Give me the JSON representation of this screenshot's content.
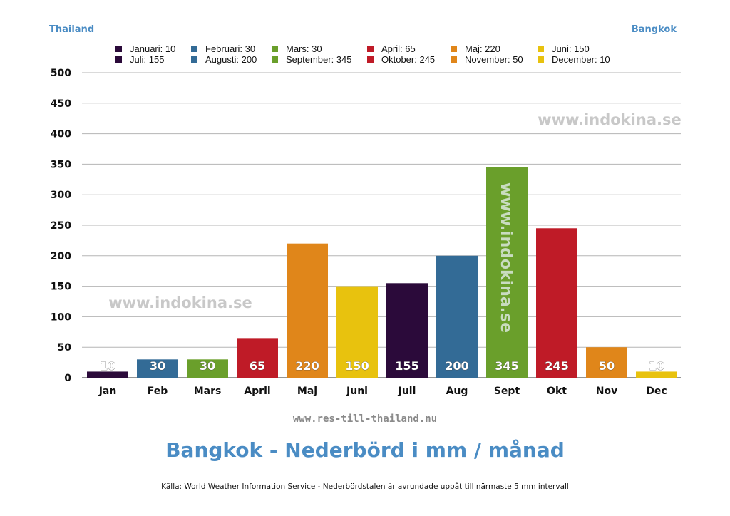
{
  "header": {
    "left": "Thailand",
    "right": "Bangkok"
  },
  "legend": [
    {
      "label": "Januari: 10",
      "color": "#2b0a3a"
    },
    {
      "label": "Februari: 30",
      "color": "#336b96"
    },
    {
      "label": "Mars: 30",
      "color": "#6a9f2b"
    },
    {
      "label": "April: 65",
      "color": "#bf1b27"
    },
    {
      "label": "Maj: 220",
      "color": "#e0861a"
    },
    {
      "label": "Juni: 150",
      "color": "#e8c20e"
    },
    {
      "label": "Juli: 155",
      "color": "#2b0a3a"
    },
    {
      "label": "Augusti: 200",
      "color": "#336b96"
    },
    {
      "label": "September: 345",
      "color": "#6a9f2b"
    },
    {
      "label": "Oktober: 245",
      "color": "#bf1b27"
    },
    {
      "label": "November: 50",
      "color": "#e0861a"
    },
    {
      "label": "December: 10",
      "color": "#e8c20e"
    }
  ],
  "watermarks": [
    "www.indokina.se",
    "www.indokina.se",
    "www.indokina.se"
  ],
  "chart_data": {
    "type": "bar",
    "categories": [
      "Jan",
      "Feb",
      "Mars",
      "April",
      "Maj",
      "Juni",
      "Juli",
      "Aug",
      "Sept",
      "Okt",
      "Nov",
      "Dec"
    ],
    "values": [
      10,
      30,
      30,
      65,
      220,
      150,
      155,
      200,
      345,
      245,
      50,
      10
    ],
    "data_labels": [
      "10",
      "30",
      "30",
      "65",
      "220",
      "150",
      "155",
      "200",
      "345",
      "245",
      "50",
      "10"
    ],
    "colors": [
      "#2b0a3a",
      "#336b96",
      "#6a9f2b",
      "#bf1b27",
      "#e0861a",
      "#e8c20e",
      "#2b0a3a",
      "#336b96",
      "#6a9f2b",
      "#bf1b27",
      "#e0861a",
      "#e8c20e"
    ],
    "ylim": [
      0,
      500
    ],
    "yticks": [
      "0",
      "50",
      "100",
      "150",
      "200",
      "250",
      "300",
      "350",
      "400",
      "450",
      "500"
    ],
    "grid": true,
    "legend_position": "top"
  },
  "footer": {
    "url": "www.res-till-thailand.nu",
    "title": "Bangkok - Nederbörd i mm / månad",
    "source": "Källa: World Weather Information Service - Nederbördstalen är avrundade uppåt till närmaste 5 mm intervall"
  }
}
